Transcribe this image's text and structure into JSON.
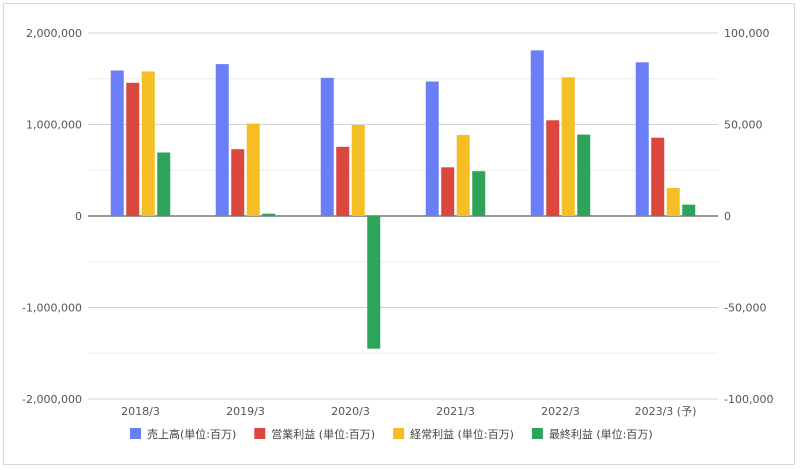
{
  "chart_data": {
    "type": "bar",
    "categories": [
      "2018/3",
      "2019/3",
      "2020/3",
      "2021/3",
      "2022/3",
      "2023/3 (予)"
    ],
    "series": [
      {
        "name": "売上高(単位:百万)",
        "color": "#6a7ff5",
        "axis": "left",
        "values": [
          1590000,
          1660000,
          1510000,
          1470000,
          1810000,
          1680000
        ]
      },
      {
        "name": "営業利益 (単位:百万)",
        "color": "#d9473d",
        "axis": "right",
        "values": [
          72800,
          36500,
          37800,
          26600,
          52300,
          42800
        ]
      },
      {
        "name": "経常利益 (単位:百万)",
        "color": "#f4be24",
        "axis": "right",
        "values": [
          79000,
          50500,
          49700,
          44300,
          75800,
          15300
        ]
      },
      {
        "name": "最終利益 (単位:百万)",
        "color": "#2ea35a",
        "axis": "right",
        "values": [
          34700,
          1300,
          -72500,
          24500,
          44500,
          6200
        ]
      }
    ],
    "left_axis": {
      "ylim": [
        -2000000,
        2000000
      ],
      "ticks": [
        "2,000,000",
        "1,000,000",
        "0",
        "-1,000,000",
        "-2,000,000"
      ]
    },
    "right_axis": {
      "ylim": [
        -100000,
        100000
      ],
      "ticks": [
        "100,000",
        "50,000",
        "0",
        "-50,000",
        "-100,000"
      ]
    },
    "grid": true,
    "legend_position": "bottom"
  }
}
